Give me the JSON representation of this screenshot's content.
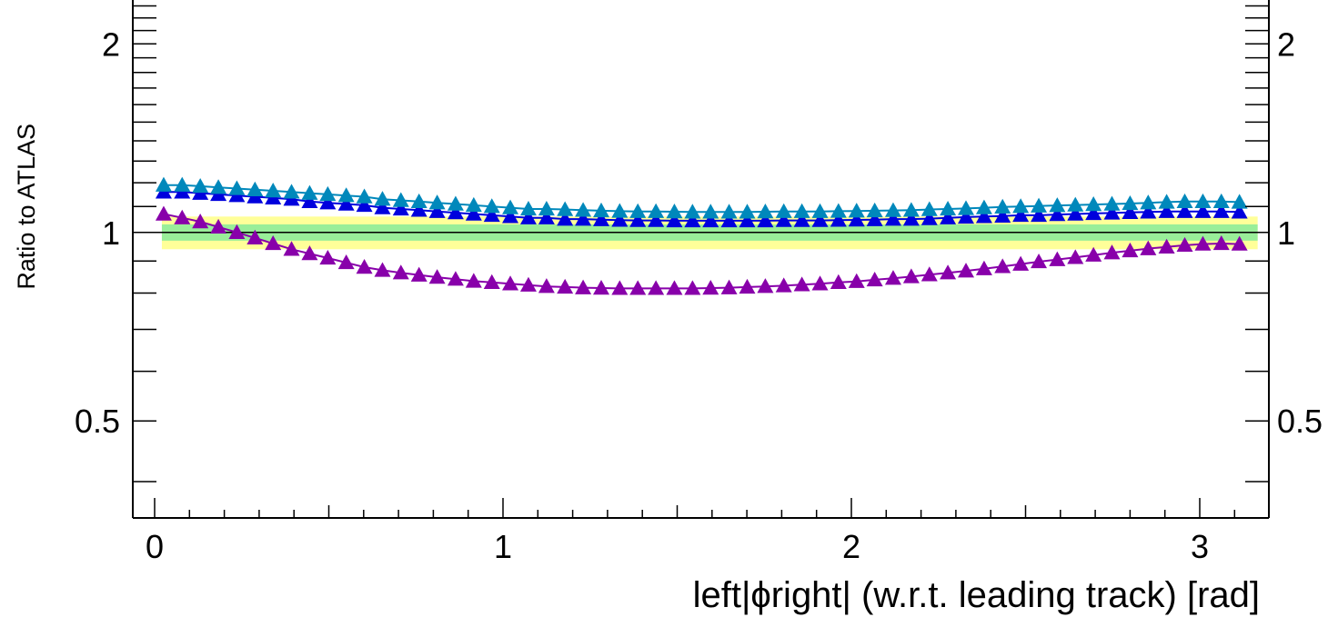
{
  "chart_data": {
    "type": "line",
    "title": "",
    "xlabel": "left|ϕright| (w.r.t. leading track) [rad]",
    "ylabel": "Ratio to ATLAS",
    "xlim": [
      -0.06,
      3.2
    ],
    "ylim": [
      0.35,
      2.35
    ],
    "y_scale": "log",
    "x_ticks": [
      0,
      1,
      2,
      3
    ],
    "x_tick_labels": [
      "0",
      "1",
      "2",
      "3"
    ],
    "y_ticks": [
      0.5,
      1,
      2
    ],
    "y_tick_labels": [
      "0.5",
      "1",
      "2"
    ],
    "grid": false,
    "legend": "none",
    "reference_line": 1.0,
    "bands": [
      {
        "lower": 0.94,
        "upper": 1.06,
        "color": "#ffff99"
      },
      {
        "lower": 0.97,
        "upper": 1.03,
        "color": "#99ee99"
      }
    ],
    "x": [
      0.026,
      0.079,
      0.131,
      0.183,
      0.236,
      0.288,
      0.34,
      0.393,
      0.445,
      0.497,
      0.55,
      0.602,
      0.654,
      0.707,
      0.759,
      0.811,
      0.864,
      0.916,
      0.968,
      1.021,
      1.073,
      1.125,
      1.178,
      1.23,
      1.282,
      1.335,
      1.387,
      1.439,
      1.492,
      1.544,
      1.596,
      1.649,
      1.701,
      1.753,
      1.806,
      1.858,
      1.91,
      1.963,
      2.015,
      2.067,
      2.12,
      2.172,
      2.224,
      2.277,
      2.329,
      2.381,
      2.434,
      2.486,
      2.538,
      2.591,
      2.643,
      2.695,
      2.748,
      2.8,
      2.852,
      2.905,
      2.957,
      3.009,
      3.062,
      3.114
    ],
    "series": [
      {
        "color": "#0000dd",
        "marker": "triangle",
        "values": [
          1.16,
          1.16,
          1.155,
          1.15,
          1.145,
          1.14,
          1.135,
          1.13,
          1.12,
          1.115,
          1.11,
          1.105,
          1.095,
          1.09,
          1.085,
          1.08,
          1.075,
          1.07,
          1.065,
          1.06,
          1.055,
          1.055,
          1.05,
          1.05,
          1.048,
          1.046,
          1.045,
          1.045,
          1.044,
          1.044,
          1.044,
          1.044,
          1.044,
          1.044,
          1.045,
          1.045,
          1.045,
          1.046,
          1.047,
          1.048,
          1.05,
          1.05,
          1.052,
          1.055,
          1.058,
          1.06,
          1.062,
          1.065,
          1.065,
          1.068,
          1.07,
          1.072,
          1.074,
          1.076,
          1.078,
          1.08,
          1.08,
          1.08,
          1.08,
          1.078
        ]
      },
      {
        "color": "#0088bb",
        "marker": "triangle",
        "values": [
          1.19,
          1.19,
          1.185,
          1.18,
          1.175,
          1.17,
          1.165,
          1.16,
          1.155,
          1.15,
          1.145,
          1.14,
          1.13,
          1.125,
          1.12,
          1.115,
          1.11,
          1.105,
          1.1,
          1.095,
          1.09,
          1.09,
          1.088,
          1.085,
          1.083,
          1.081,
          1.08,
          1.08,
          1.079,
          1.078,
          1.078,
          1.078,
          1.078,
          1.079,
          1.08,
          1.08,
          1.08,
          1.081,
          1.082,
          1.083,
          1.084,
          1.085,
          1.088,
          1.09,
          1.092,
          1.095,
          1.098,
          1.1,
          1.102,
          1.104,
          1.106,
          1.108,
          1.11,
          1.112,
          1.115,
          1.118,
          1.12,
          1.12,
          1.12,
          1.118
        ]
      },
      {
        "color": "#8800aa",
        "marker": "triangle",
        "values": [
          1.07,
          1.055,
          1.04,
          1.02,
          1.0,
          0.98,
          0.96,
          0.94,
          0.925,
          0.91,
          0.895,
          0.88,
          0.87,
          0.862,
          0.855,
          0.848,
          0.842,
          0.836,
          0.832,
          0.828,
          0.824,
          0.82,
          0.818,
          0.816,
          0.815,
          0.814,
          0.814,
          0.814,
          0.814,
          0.814,
          0.815,
          0.816,
          0.818,
          0.82,
          0.822,
          0.825,
          0.828,
          0.832,
          0.835,
          0.84,
          0.845,
          0.85,
          0.856,
          0.862,
          0.868,
          0.875,
          0.882,
          0.89,
          0.898,
          0.905,
          0.912,
          0.92,
          0.928,
          0.935,
          0.942,
          0.948,
          0.954,
          0.958,
          0.96,
          0.958
        ]
      }
    ]
  }
}
